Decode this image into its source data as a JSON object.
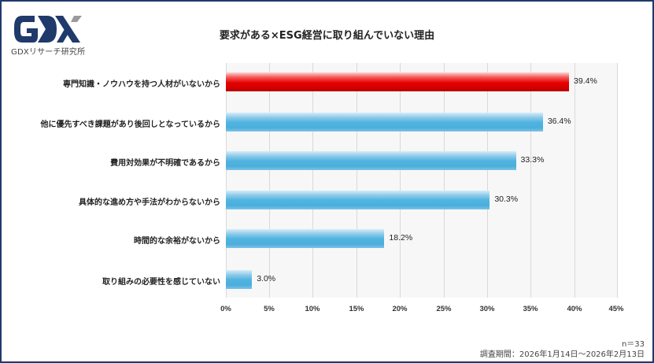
{
  "logo": {
    "mark": "GDX",
    "subtitle": "GDXリサーチ研究所"
  },
  "chart_data": {
    "type": "bar",
    "orientation": "horizontal",
    "title": "要求がある×ESG経営に取り組んでいない理由",
    "categories": [
      "専門知識・ノウハウを持つ人材がいないから",
      "他に優先すべき課題があり後回しとなっているから",
      "費用対効果が不明確であるから",
      "具体的な進め方や手法がわからないから",
      "時間的な余裕がないから",
      "取り組みの必要性を感じていない"
    ],
    "values": [
      39.4,
      36.4,
      33.3,
      30.3,
      18.2,
      3.0
    ],
    "value_labels": [
      "39.4%",
      "36.4%",
      "33.3%",
      "30.3%",
      "18.2%",
      "3.0%"
    ],
    "highlight_index": 0,
    "colors": {
      "highlight": "#e60000",
      "default": "#4aaedc"
    },
    "xlabel": "",
    "ylabel": "",
    "xlim": [
      0,
      45
    ],
    "x_ticks": [
      "0%",
      "5%",
      "10%",
      "15%",
      "20%",
      "25%",
      "30%",
      "35%",
      "40%",
      "45%"
    ],
    "grid": true,
    "legend": "none"
  },
  "footer": {
    "n": "n＝33",
    "period": "調査期間：2026年1月14日～2026年2月13日"
  }
}
